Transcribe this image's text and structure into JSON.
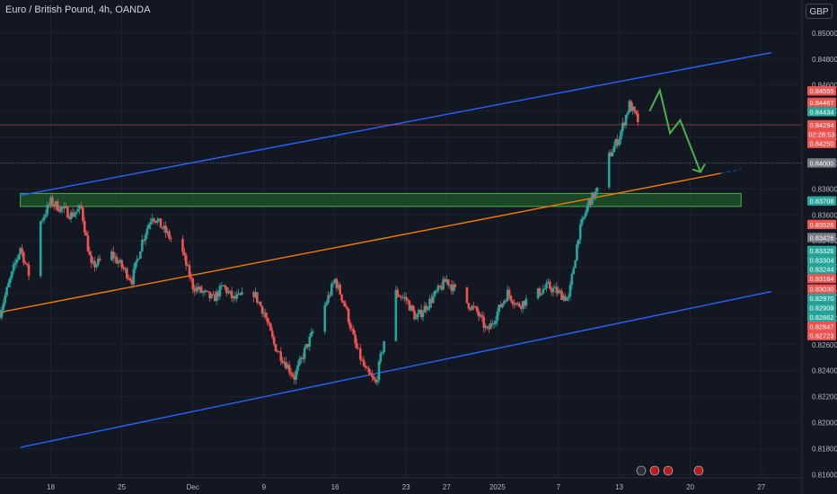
{
  "header": {
    "title": "Euro / British Pound, 4h, OANDA",
    "currency": "GBP"
  },
  "colors": {
    "background": "#131722",
    "grid": "#1e222d",
    "up": "#26a69a",
    "down": "#ef5350",
    "channel": "#2962ff",
    "trend": "#f57c00",
    "zone_fill": "#1e5a2a",
    "zone_stroke": "#4caf50",
    "projection": "#4caf50",
    "axis_text": "#b2b5be"
  },
  "chart_data": {
    "type": "candlestick",
    "title": "Euro / British Pound, 4h, OANDA",
    "ylim": [
      0.81575,
      0.85255
    ],
    "xlim": [
      "2024-11-13",
      "2025-01-31"
    ],
    "y_ticks": [
      "0.85000",
      "0.84800",
      "0.84600",
      "0.84400",
      "0.84200",
      "0.84000",
      "0.83800",
      "0.83600",
      "0.83400",
      "0.83200",
      "0.83000",
      "0.82800",
      "0.82600",
      "0.82400",
      "0.82200",
      "0.82000",
      "0.81800",
      "0.81600"
    ],
    "x_ticks": [
      {
        "label": "18",
        "date": "2024-11-18"
      },
      {
        "label": "25",
        "date": "2024-11-25"
      },
      {
        "label": "Dec",
        "date": "2024-12-02"
      },
      {
        "label": "9",
        "date": "2024-12-09"
      },
      {
        "label": "16",
        "date": "2024-12-16"
      },
      {
        "label": "23",
        "date": "2024-12-23"
      },
      {
        "label": "27",
        "date": "2024-12-27"
      },
      {
        "label": "2025",
        "date": "2025-01-01"
      },
      {
        "label": "7",
        "date": "2025-01-07"
      },
      {
        "label": "13",
        "date": "2025-01-13"
      },
      {
        "label": "20",
        "date": "2025-01-20"
      },
      {
        "label": "27",
        "date": "2025-01-27"
      }
    ],
    "close_path": [
      {
        "date": "2024-11-13",
        "price": 0.8285
      },
      {
        "date": "2024-11-15",
        "price": 0.8335
      },
      {
        "date": "2024-11-16",
        "price": 0.831
      },
      {
        "date": "2024-11-17",
        "price": 0.8355
      },
      {
        "date": "2024-11-18",
        "price": 0.837
      },
      {
        "date": "2024-11-20",
        "price": 0.836
      },
      {
        "date": "2024-11-21",
        "price": 0.8365
      },
      {
        "date": "2024-11-22",
        "price": 0.832
      },
      {
        "date": "2024-11-24",
        "price": 0.833
      },
      {
        "date": "2024-11-26",
        "price": 0.831
      },
      {
        "date": "2024-11-27",
        "price": 0.834
      },
      {
        "date": "2024-11-28",
        "price": 0.836
      },
      {
        "date": "2024-11-29",
        "price": 0.835
      },
      {
        "date": "2024-12-01",
        "price": 0.833
      },
      {
        "date": "2024-12-02",
        "price": 0.8305
      },
      {
        "date": "2024-12-04",
        "price": 0.8295
      },
      {
        "date": "2024-12-05",
        "price": 0.8305
      },
      {
        "date": "2024-12-06",
        "price": 0.8295
      },
      {
        "date": "2024-12-08",
        "price": 0.83
      },
      {
        "date": "2024-12-09",
        "price": 0.8285
      },
      {
        "date": "2024-12-10",
        "price": 0.826
      },
      {
        "date": "2024-12-12",
        "price": 0.8235
      },
      {
        "date": "2024-12-13",
        "price": 0.8255
      },
      {
        "date": "2024-12-15",
        "price": 0.829
      },
      {
        "date": "2024-12-16",
        "price": 0.831
      },
      {
        "date": "2024-12-17",
        "price": 0.829
      },
      {
        "date": "2024-12-18",
        "price": 0.826
      },
      {
        "date": "2024-12-19",
        "price": 0.824
      },
      {
        "date": "2024-12-20",
        "price": 0.823
      },
      {
        "date": "2024-12-21",
        "price": 0.827
      },
      {
        "date": "2024-12-22",
        "price": 0.83
      },
      {
        "date": "2024-12-23",
        "price": 0.8295
      },
      {
        "date": "2024-12-24",
        "price": 0.828
      },
      {
        "date": "2024-12-26",
        "price": 0.83
      },
      {
        "date": "2024-12-27",
        "price": 0.831
      },
      {
        "date": "2024-12-28",
        "price": 0.83
      },
      {
        "date": "2024-12-30",
        "price": 0.8285
      },
      {
        "date": "2024-12-31",
        "price": 0.827
      },
      {
        "date": "2025-01-01",
        "price": 0.8285
      },
      {
        "date": "2025-01-02",
        "price": 0.83
      },
      {
        "date": "2025-01-03",
        "price": 0.829
      },
      {
        "date": "2025-01-04",
        "price": 0.8295
      },
      {
        "date": "2025-01-06",
        "price": 0.8305
      },
      {
        "date": "2025-01-07",
        "price": 0.83
      },
      {
        "date": "2025-01-08",
        "price": 0.8295
      },
      {
        "date": "2025-01-09",
        "price": 0.8345
      },
      {
        "date": "2025-01-10",
        "price": 0.837
      },
      {
        "date": "2025-01-11",
        "price": 0.838
      },
      {
        "date": "2025-01-12",
        "price": 0.8405
      },
      {
        "date": "2025-01-13",
        "price": 0.842
      },
      {
        "date": "2025-01-14",
        "price": 0.8445
      },
      {
        "date": "2025-01-15",
        "price": 0.843
      }
    ],
    "last_price": 0.84294,
    "countdown": "02:28:53",
    "price_labels": [
      {
        "value": "0.84555",
        "price": 0.84555,
        "color": "#ef5350"
      },
      {
        "value": "0.84467",
        "price": 0.84467,
        "color": "#ef5350"
      },
      {
        "value": "0.84434",
        "price": 0.84434,
        "color": "#26a69a"
      },
      {
        "value": "0.84294",
        "price": 0.84294,
        "color": "#ef5350"
      },
      {
        "value": "0.84250",
        "price": 0.8425,
        "color": "#ef5350"
      },
      {
        "value": "0.84000",
        "price": 0.84,
        "color": "#787b86"
      },
      {
        "value": "0.83708",
        "price": 0.83708,
        "color": "#26a69a"
      },
      {
        "value": "0.83526",
        "price": 0.83526,
        "color": "#ef5350"
      },
      {
        "value": "0.83426",
        "price": 0.83426,
        "color": "#787b86"
      },
      {
        "value": "0.83326",
        "price": 0.83326,
        "color": "#26a69a"
      },
      {
        "value": "0.83304",
        "price": 0.83304,
        "color": "#26a69a"
      },
      {
        "value": "0.83244",
        "price": 0.83244,
        "color": "#26a69a"
      },
      {
        "value": "0.83184",
        "price": 0.83184,
        "color": "#ef5350"
      },
      {
        "value": "0.83030",
        "price": 0.8303,
        "color": "#ef5350"
      },
      {
        "value": "0.82970",
        "price": 0.8297,
        "color": "#26a69a"
      },
      {
        "value": "0.82909",
        "price": 0.82909,
        "color": "#26a69a"
      },
      {
        "value": "0.82862",
        "price": 0.82862,
        "color": "#26a69a"
      },
      {
        "value": "0.82847",
        "price": 0.82847,
        "color": "#ef5350"
      },
      {
        "value": "0.82723",
        "price": 0.82723,
        "color": "#ef5350"
      }
    ],
    "drawings": {
      "channel_upper": [
        {
          "date": "2024-11-15",
          "price": 0.8375
        },
        {
          "date": "2025-01-28",
          "price": 0.8485
        }
      ],
      "channel_lower": [
        {
          "date": "2024-11-15",
          "price": 0.8181
        },
        {
          "date": "2025-01-28",
          "price": 0.8301
        }
      ],
      "trend_line": [
        {
          "date": "2024-11-13",
          "price": 0.8285
        },
        {
          "date": "2025-01-23",
          "price": 0.8392
        }
      ],
      "resistance_zone": {
        "from": "2024-11-15",
        "to": "2025-01-25",
        "low": 0.83665,
        "high": 0.83765
      },
      "projection": [
        {
          "date": "2025-01-16",
          "price": 0.844
        },
        {
          "date": "2025-01-17",
          "price": 0.8456
        },
        {
          "date": "2025-01-18",
          "price": 0.8423
        },
        {
          "date": "2025-01-19",
          "price": 0.8433
        },
        {
          "date": "2025-01-21",
          "price": 0.8393
        }
      ]
    }
  }
}
